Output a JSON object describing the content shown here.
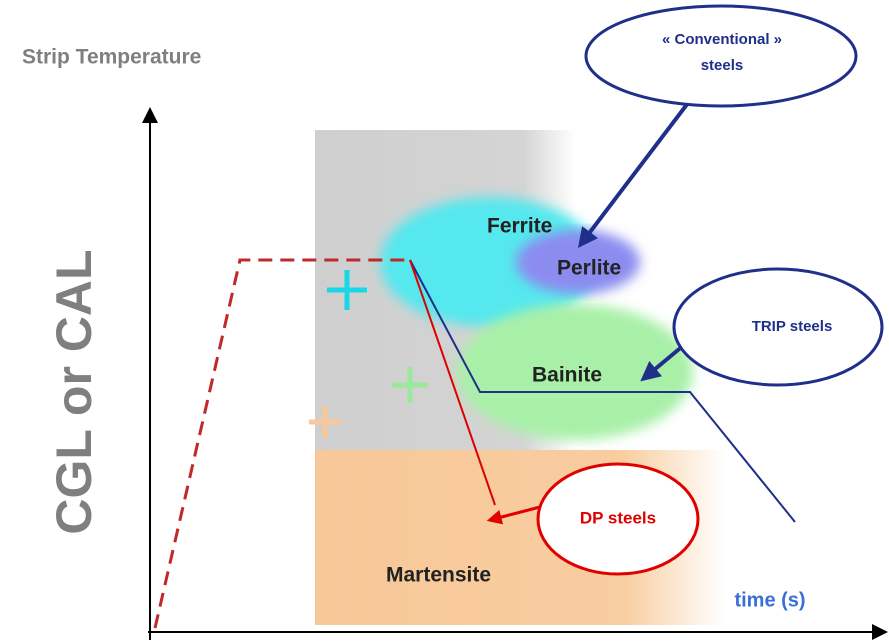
{
  "axes": {
    "y_label": "Strip Temperature",
    "x_label": "time (s)",
    "line_label": "CGL or CAL"
  },
  "phases": [
    "Ferrite",
    "Perlite",
    "Bainite",
    "Martensite"
  ],
  "callouts": {
    "conventional": [
      "« Conventional »",
      "steels"
    ],
    "trip": "TRIP steels",
    "dp": "DP steels"
  }
}
